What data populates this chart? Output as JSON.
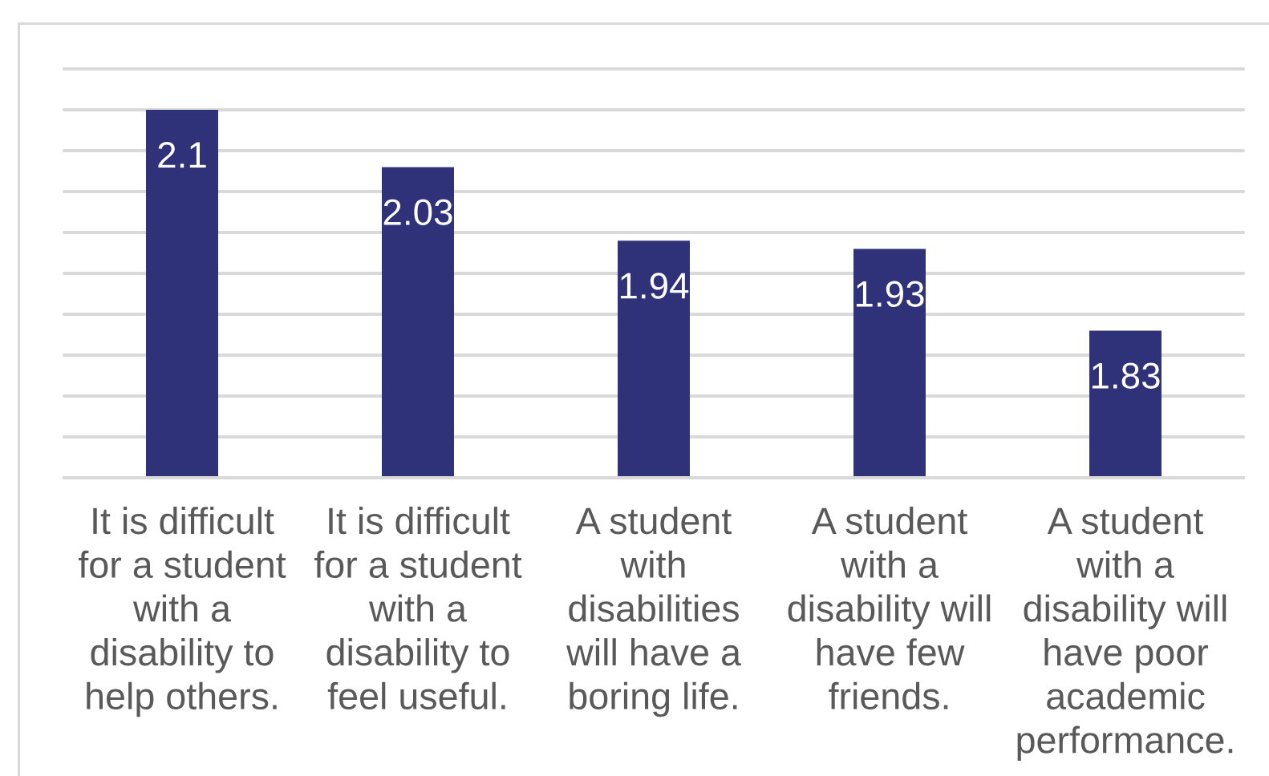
{
  "chart_data": {
    "type": "bar",
    "categories": [
      "It is difficult\nfor a student\nwith a\ndisability to\nhelp others.",
      "It is difficult\nfor a student\nwith a\ndisability to\nfeel useful.",
      "A student\nwith\ndisabilities\nwill have a\nboring life.",
      "A student\nwith a\ndisability will\nhave few\nfriends.",
      "A student\nwith a\ndisability will\nhave poor\nacademic\nperformance."
    ],
    "values": [
      2.1,
      2.03,
      1.94,
      1.93,
      1.83
    ],
    "color": "#2f3179",
    "ylim": [
      1.65,
      2.15
    ],
    "yticks": [
      1.65,
      1.7,
      1.75,
      1.8,
      1.85,
      1.9,
      1.95,
      2.0,
      2.05,
      2.1,
      2.15
    ],
    "tick_labels": "x",
    "grid": "y",
    "data_labels": true
  }
}
